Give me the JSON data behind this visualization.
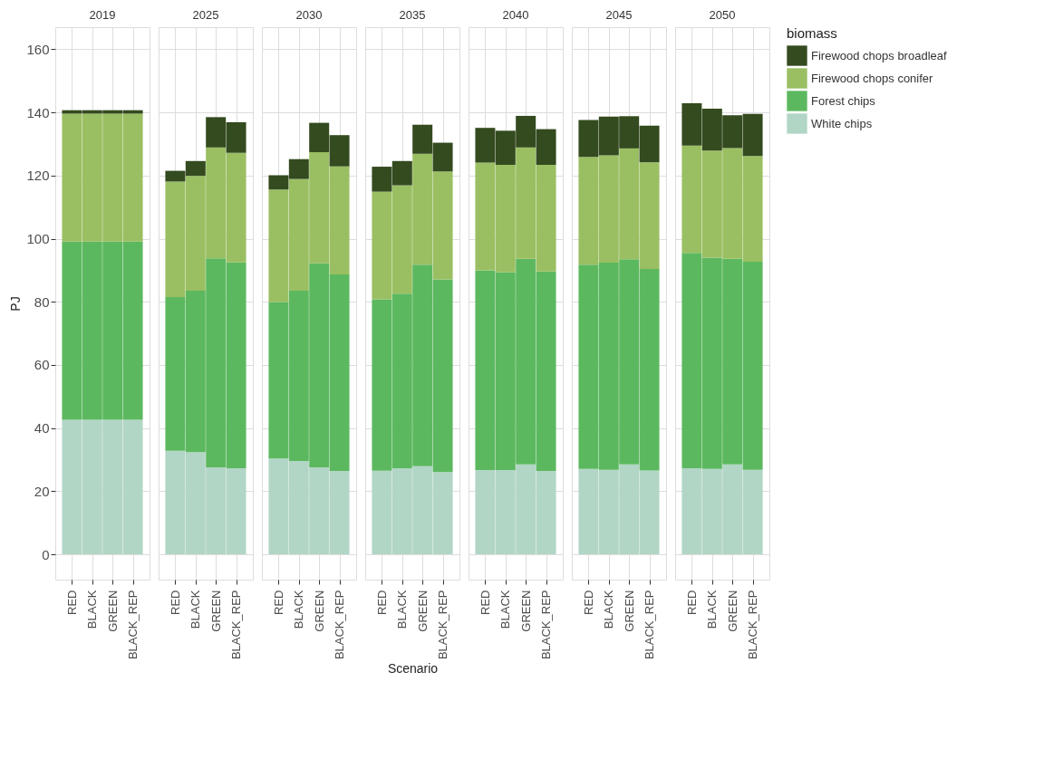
{
  "chart_data": [
    {
      "type": "bar",
      "title": "2019",
      "ylabel": "PJ",
      "categories": [
        "RED",
        "BLACK",
        "GREEN",
        "BLACK_REP"
      ],
      "stacked": true,
      "ylim": [
        -8,
        167
      ],
      "yticks": [
        0,
        20,
        40,
        60,
        80,
        100,
        120,
        140,
        160
      ],
      "grid": true,
      "legend": "right",
      "legend_title": "biomass",
      "series": [
        {
          "name": "White chips",
          "color": "#b2d6c6",
          "values": [
            42.6,
            42.6,
            42.6,
            42.6
          ]
        },
        {
          "name": "Forest chips",
          "color": "#5cb85f",
          "values": [
            56.5,
            56.5,
            56.5,
            56.5
          ]
        },
        {
          "name": "Firewood chops conifer",
          "color": "#9abf62",
          "values": [
            40.5,
            40.5,
            40.5,
            40.5
          ]
        },
        {
          "name": "Firewood chops broadleaf",
          "color": "#344a1f",
          "values": [
            1.1,
            1.1,
            1.1,
            1.1
          ]
        }
      ]
    },
    {
      "type": "bar",
      "title": "2025",
      "categories": [
        "RED",
        "BLACK",
        "GREEN",
        "BLACK_REP"
      ],
      "stacked": true,
      "ylim": [
        -8,
        167
      ],
      "yticks": [
        0,
        20,
        40,
        60,
        80,
        100,
        120,
        140,
        160
      ],
      "tick_labels": "x",
      "grid": true,
      "series": [
        {
          "color": "#b2d6c6",
          "values": [
            32.8,
            32.4,
            27.6,
            27.3
          ]
        },
        {
          "color": "#5cb85f",
          "values": [
            48.7,
            51.1,
            66.2,
            65.2
          ]
        },
        {
          "color": "#9abf62",
          "values": [
            36.6,
            36.4,
            35.1,
            34.7
          ]
        },
        {
          "color": "#344a1f",
          "values": [
            3.4,
            4.7,
            9.6,
            9.7
          ]
        }
      ]
    },
    {
      "type": "bar",
      "title": "2030",
      "categories": [
        "RED",
        "BLACK",
        "GREEN",
        "BLACK_REP"
      ],
      "stacked": true,
      "ylim": [
        -8,
        167
      ],
      "yticks": [
        0,
        20,
        40,
        60,
        80,
        100,
        120,
        140,
        160
      ],
      "tick_labels": "x",
      "grid": true,
      "series": [
        {
          "color": "#b2d6c6",
          "values": [
            30.4,
            29.6,
            27.6,
            26.4
          ]
        },
        {
          "color": "#5cb85f",
          "values": [
            49.5,
            53.9,
            64.6,
            62.3
          ]
        },
        {
          "color": "#9abf62",
          "values": [
            35.7,
            35.4,
            35.2,
            34.2
          ]
        },
        {
          "color": "#344a1f",
          "values": [
            4.5,
            6.3,
            9.3,
            9.9
          ]
        }
      ]
    },
    {
      "type": "bar",
      "title": "2035",
      "xlabel": "Scenario",
      "categories": [
        "RED",
        "BLACK",
        "GREEN",
        "BLACK_REP"
      ],
      "stacked": true,
      "ylim": [
        -8,
        167
      ],
      "yticks": [
        0,
        20,
        40,
        60,
        80,
        100,
        120,
        140,
        160
      ],
      "tick_labels": "x",
      "grid": true,
      "series": [
        {
          "color": "#b2d6c6",
          "values": [
            26.5,
            27.3,
            27.9,
            26.1
          ]
        },
        {
          "color": "#5cb85f",
          "values": [
            54.3,
            55.3,
            63.9,
            61.0
          ]
        },
        {
          "color": "#9abf62",
          "values": [
            34.1,
            34.3,
            35.1,
            34.2
          ]
        },
        {
          "color": "#344a1f",
          "values": [
            7.9,
            7.7,
            9.2,
            9.1
          ]
        }
      ]
    },
    {
      "type": "bar",
      "title": "2040",
      "categories": [
        "RED",
        "BLACK",
        "GREEN",
        "BLACK_REP"
      ],
      "stacked": true,
      "ylim": [
        -8,
        167
      ],
      "yticks": [
        0,
        20,
        40,
        60,
        80,
        100,
        120,
        140,
        160
      ],
      "tick_labels": "x",
      "grid": true,
      "series": [
        {
          "color": "#b2d6c6",
          "values": [
            26.7,
            26.7,
            28.5,
            26.4
          ]
        },
        {
          "color": "#5cb85f",
          "values": [
            63.3,
            62.7,
            65.1,
            63.2
          ]
        },
        {
          "color": "#9abf62",
          "values": [
            34.1,
            34.0,
            35.3,
            33.8
          ]
        },
        {
          "color": "#344a1f",
          "values": [
            11.0,
            10.8,
            10.0,
            11.3
          ]
        }
      ]
    },
    {
      "type": "bar",
      "title": "2045",
      "categories": [
        "RED",
        "BLACK",
        "GREEN",
        "BLACK_REP"
      ],
      "stacked": true,
      "ylim": [
        -8,
        167
      ],
      "yticks": [
        0,
        20,
        40,
        60,
        80,
        100,
        120,
        140,
        160
      ],
      "tick_labels": "x",
      "grid": true,
      "series": [
        {
          "color": "#b2d6c6",
          "values": [
            27.1,
            26.8,
            28.5,
            26.6
          ]
        },
        {
          "color": "#5cb85f",
          "values": [
            64.7,
            65.6,
            65.0,
            63.8
          ]
        },
        {
          "color": "#9abf62",
          "values": [
            34.1,
            34.0,
            35.1,
            33.8
          ]
        },
        {
          "color": "#344a1f",
          "values": [
            11.7,
            12.3,
            10.2,
            11.6
          ]
        }
      ]
    },
    {
      "type": "bar",
      "title": "2050",
      "categories": [
        "RED",
        "BLACK",
        "GREEN",
        "BLACK_REP"
      ],
      "stacked": true,
      "ylim": [
        -8,
        167
      ],
      "yticks": [
        0,
        20,
        40,
        60,
        80,
        100,
        120,
        140,
        160
      ],
      "tick_labels": "x",
      "grid": true,
      "series": [
        {
          "color": "#b2d6c6",
          "values": [
            27.3,
            27.1,
            28.5,
            26.8
          ]
        },
        {
          "color": "#5cb85f",
          "values": [
            68.2,
            66.9,
            65.1,
            65.9
          ]
        },
        {
          "color": "#9abf62",
          "values": [
            34.0,
            33.9,
            35.1,
            33.5
          ]
        },
        {
          "color": "#344a1f",
          "values": [
            13.4,
            13.3,
            10.4,
            13.3
          ]
        }
      ]
    }
  ]
}
